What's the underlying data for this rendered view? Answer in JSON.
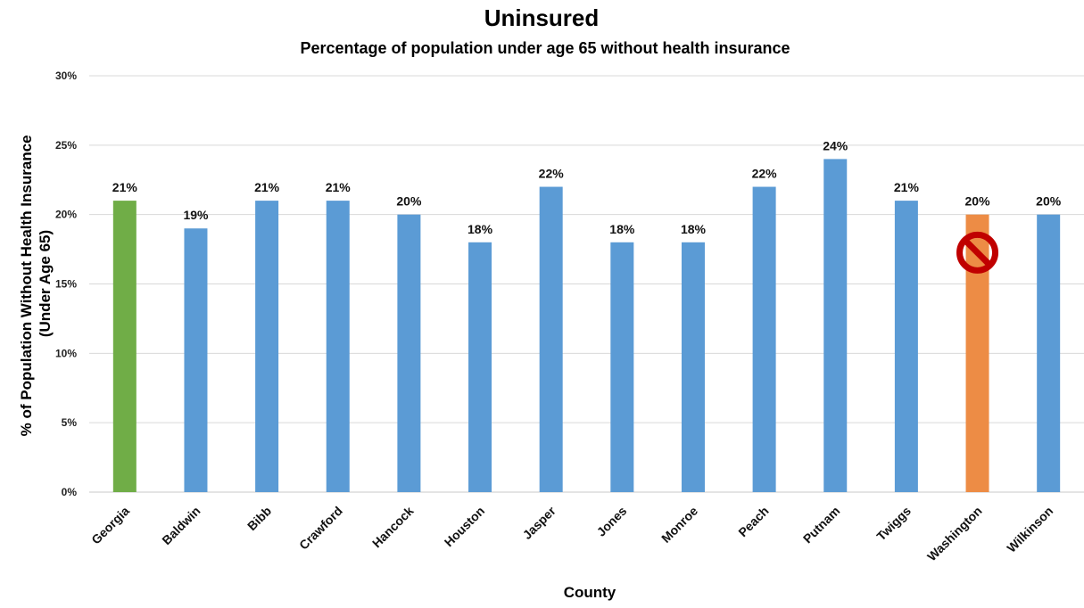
{
  "chart_data": {
    "type": "bar",
    "title": "Uninsured",
    "subtitle": "Percentage of population under age 65 without health insurance",
    "xlabel": "County",
    "ylabel_lines": [
      "% of Population Without Health Insurance",
      "(Under Age 65)"
    ],
    "categories": [
      "Georgia",
      "Baldwin",
      "Bibb",
      "Crawford",
      "Hancock",
      "Houston",
      "Jasper",
      "Jones",
      "Monroe",
      "Peach",
      "Putnam",
      "Twiggs",
      "Washington",
      "Wilkinson"
    ],
    "values": [
      21,
      19,
      21,
      21,
      20,
      18,
      22,
      18,
      18,
      22,
      24,
      21,
      20,
      20
    ],
    "data_labels": [
      "21%",
      "19%",
      "21%",
      "21%",
      "20%",
      "18%",
      "22%",
      "18%",
      "18%",
      "22%",
      "24%",
      "21%",
      "20%",
      "20%"
    ],
    "bar_colors": [
      "#70ad47",
      "#5b9bd5",
      "#5b9bd5",
      "#5b9bd5",
      "#5b9bd5",
      "#5b9bd5",
      "#5b9bd5",
      "#5b9bd5",
      "#5b9bd5",
      "#5b9bd5",
      "#5b9bd5",
      "#5b9bd5",
      "#ed8c45",
      "#5b9bd5"
    ],
    "ylim": [
      0,
      30
    ],
    "yticks": [
      0,
      5,
      10,
      15,
      20,
      25,
      30
    ],
    "ytick_labels": [
      "0%",
      "5%",
      "10%",
      "15%",
      "20%",
      "25%",
      "30%"
    ],
    "grid": true,
    "legend": "none",
    "annotation": {
      "category": "Washington",
      "icon": "prohibited-icon",
      "color": "#c00000",
      "at_value": 17
    }
  }
}
